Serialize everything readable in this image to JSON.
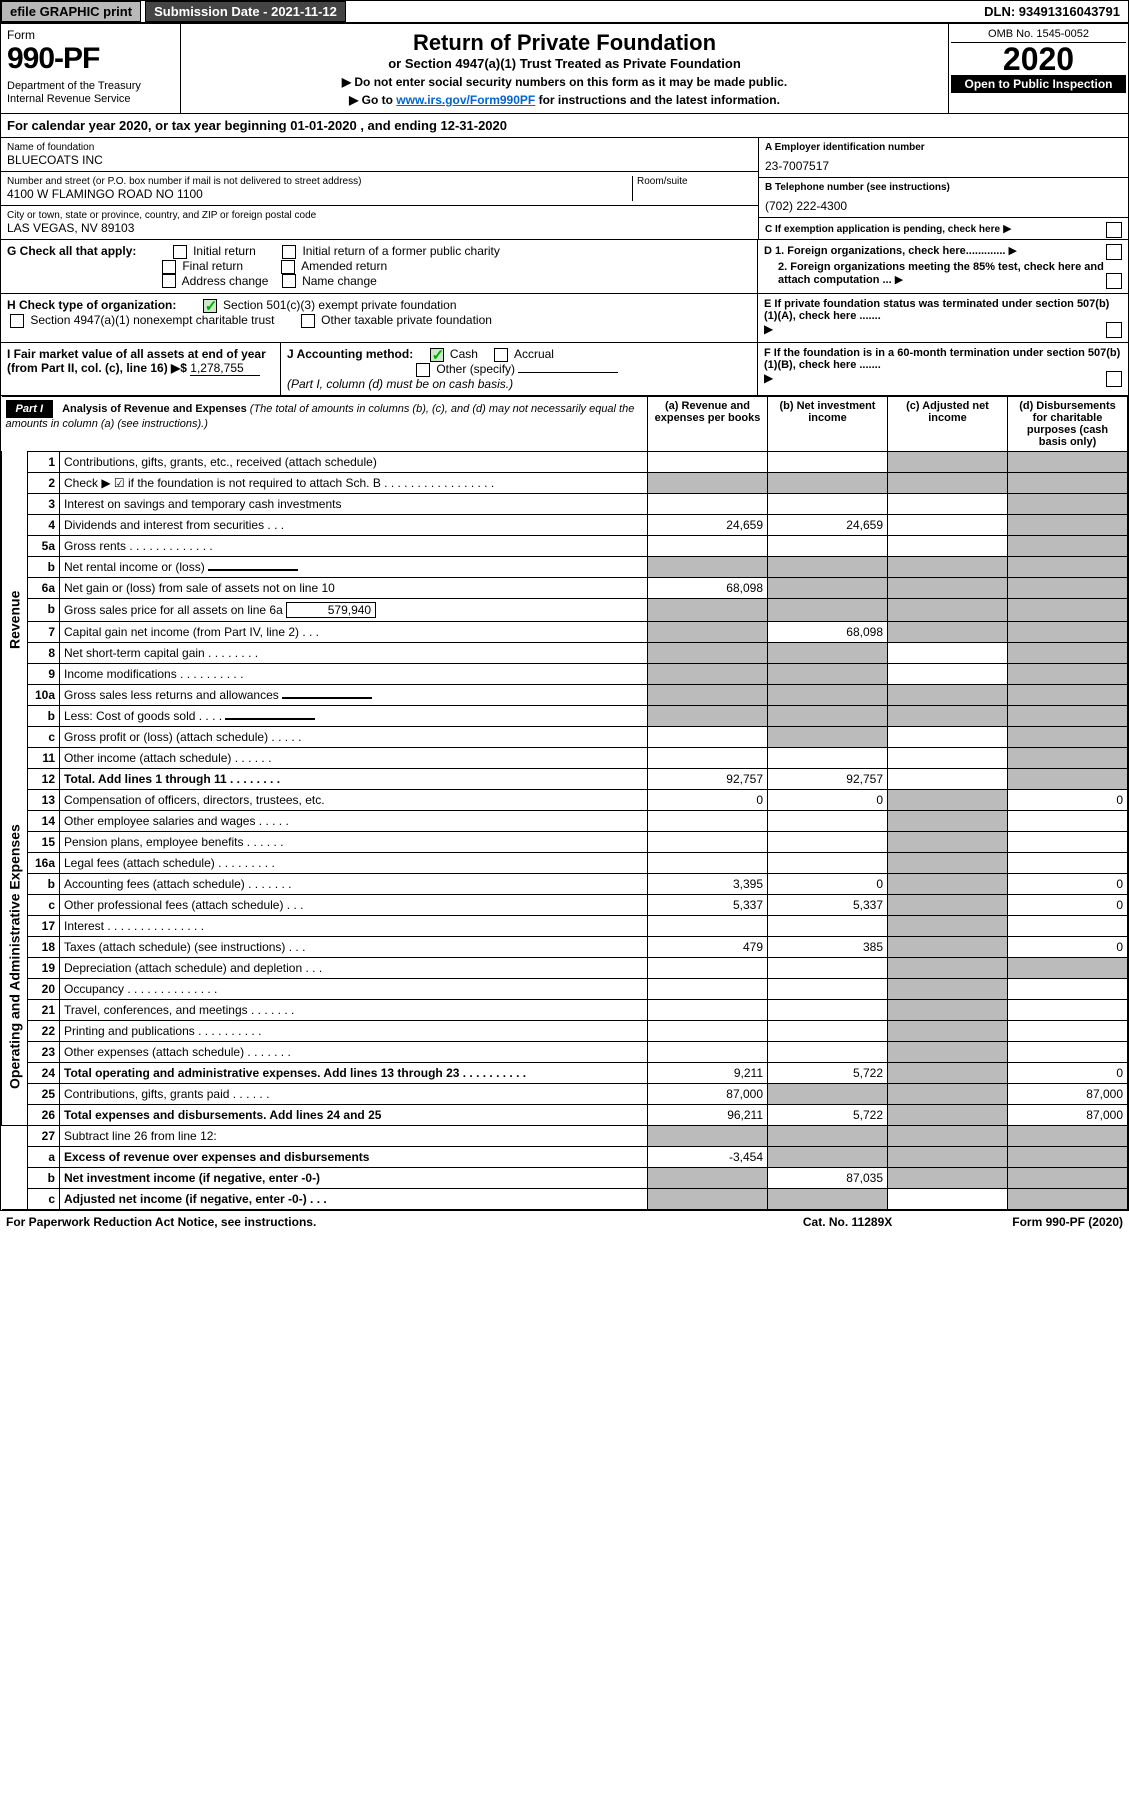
{
  "topbar": {
    "efile": "efile GRAPHIC print",
    "submission": "Submission Date - 2021-11-12",
    "dln": "DLN: 93491316043791"
  },
  "header": {
    "form_label": "Form",
    "form_num": "990-PF",
    "dept": "Department of the Treasury\nInternal Revenue Service",
    "title": "Return of Private Foundation",
    "subtitle": "or Section 4947(a)(1) Trust Treated as Private Foundation",
    "inst1": "▶ Do not enter social security numbers on this form as it may be made public.",
    "inst2": "▶ Go to ",
    "inst2_link": "www.irs.gov/Form990PF",
    "inst2_end": " for instructions and the latest information.",
    "omb": "OMB No. 1545-0052",
    "year": "2020",
    "open": "Open to Public Inspection"
  },
  "cal": "For calendar year 2020, or tax year beginning 01-01-2020                          , and ending 12-31-2020",
  "info": {
    "name_lbl": "Name of foundation",
    "name": "BLUECOATS INC",
    "addr_lbl": "Number and street (or P.O. box number if mail is not delivered to street address)",
    "addr": "4100 W FLAMINGO ROAD NO 1100",
    "room": "Room/suite",
    "city_lbl": "City or town, state or province, country, and ZIP or foreign postal code",
    "city": "LAS VEGAS, NV  89103",
    "ein_lbl": "A Employer identification number",
    "ein": "23-7007517",
    "tel_lbl": "B Telephone number (see instructions)",
    "tel": "(702) 222-4300",
    "c": "C If exemption application is pending, check here"
  },
  "g": {
    "label": "G Check all that apply:",
    "o1": "Initial return",
    "o2": "Final return",
    "o3": "Address change",
    "o4": "Initial return of a former public charity",
    "o5": "Amended return",
    "o6": "Name change"
  },
  "h": {
    "label": "H Check type of organization:",
    "o1": "Section 501(c)(3) exempt private foundation",
    "o2": "Section 4947(a)(1) nonexempt charitable trust",
    "o3": "Other taxable private foundation"
  },
  "i": {
    "label": "I Fair market value of all assets at end of year (from Part II, col. (c), line 16) ▶$ ",
    "val": "1,278,755"
  },
  "j": {
    "label": "J Accounting method:",
    "o1": "Cash",
    "o2": "Accrual",
    "o3": "Other (specify)",
    "note": "(Part I, column (d) must be on cash basis.)"
  },
  "d": {
    "d1": "D 1. Foreign organizations, check here.............",
    "d2": "2. Foreign organizations meeting the 85% test, check here and attach computation ..."
  },
  "e": "E  If private foundation status was terminated under section 507(b)(1)(A), check here .......",
  "f": "F  If the foundation is in a 60-month termination under section 507(b)(1)(B), check here .......",
  "part1": {
    "hdr": "Part I",
    "title": "Analysis of Revenue and Expenses",
    "note": "(The total of amounts in columns (b), (c), and (d) may not necessarily equal the amounts in column (a) (see instructions).)",
    "cols": {
      "a": "(a)   Revenue and expenses per books",
      "b": "(b)   Net investment income",
      "c": "(c)   Adjusted net income",
      "d": "(d)   Disbursements for charitable purposes (cash basis only)"
    }
  },
  "sections": {
    "rev": "Revenue",
    "exp": "Operating and Administrative Expenses"
  },
  "rows": [
    {
      "n": "1",
      "d": "Contributions, gifts, grants, etc., received (attach schedule)",
      "a": "",
      "b": "",
      "c": "g",
      "dcol": "g"
    },
    {
      "n": "2",
      "d": "Check ▶ ☑ if the foundation is not required to attach Sch. B       .  .  .  .  .  .  .  .  .  .  .  .  .  .  .  .  .",
      "a": "g",
      "b": "g",
      "c": "g",
      "dcol": "g"
    },
    {
      "n": "3",
      "d": "Interest on savings and temporary cash investments",
      "a": "",
      "b": "",
      "c": "",
      "dcol": "g"
    },
    {
      "n": "4",
      "d": "Dividends and interest from securities     .    .    .",
      "a": "24,659",
      "b": "24,659",
      "c": "",
      "dcol": "g"
    },
    {
      "n": "5a",
      "d": "Gross rents         .  .  .  .  .  .  .  .  .  .  .  .  .",
      "a": "",
      "b": "",
      "c": "",
      "dcol": "g"
    },
    {
      "n": "b",
      "d": "Net rental income or (loss)   ",
      "a": "g",
      "b": "g",
      "c": "g",
      "dcol": "g",
      "inline": true
    },
    {
      "n": "6a",
      "d": "Net gain or (loss) from sale of assets not on line 10",
      "a": "68,098",
      "b": "g",
      "c": "g",
      "dcol": "g"
    },
    {
      "n": "b",
      "d": "Gross sales price for all assets on line 6a",
      "a": "g",
      "b": "g",
      "c": "g",
      "dcol": "g",
      "inline": true,
      "ival": "579,940"
    },
    {
      "n": "7",
      "d": "Capital gain net income (from Part IV, line 2)    .    .    .",
      "a": "g",
      "b": "68,098",
      "c": "g",
      "dcol": "g"
    },
    {
      "n": "8",
      "d": "Net short-term capital gain  .   .   .   .   .   .   .   .",
      "a": "g",
      "b": "g",
      "c": "",
      "dcol": "g"
    },
    {
      "n": "9",
      "d": "Income modifications  .   .   .   .   .   .   .   .   .  .",
      "a": "g",
      "b": "g",
      "c": "",
      "dcol": "g"
    },
    {
      "n": "10a",
      "d": "Gross sales less returns and allowances",
      "a": "g",
      "b": "g",
      "c": "g",
      "dcol": "g",
      "inline": true
    },
    {
      "n": "b",
      "d": "Less: Cost of goods sold     .    .    .    .",
      "a": "g",
      "b": "g",
      "c": "g",
      "dcol": "g",
      "inline": true
    },
    {
      "n": "c",
      "d": "Gross profit or (loss) (attach schedule)       .    .    .    .    .",
      "a": "",
      "b": "g",
      "c": "",
      "dcol": "g"
    },
    {
      "n": "11",
      "d": "Other income (attach schedule)     .    .    .    .    .    .",
      "a": "",
      "b": "",
      "c": "",
      "dcol": "g"
    },
    {
      "n": "12",
      "d": "Total. Add lines 1 through 11   .    .    .    .    .    .    .    .",
      "a": "92,757",
      "b": "92,757",
      "c": "",
      "dcol": "g",
      "bold": true
    }
  ],
  "rows2": [
    {
      "n": "13",
      "d": "Compensation of officers, directors, trustees, etc.",
      "a": "0",
      "b": "0",
      "c": "g",
      "dcol": "0"
    },
    {
      "n": "14",
      "d": "Other employee salaries and wages    .    .    .    .    .",
      "a": "",
      "b": "",
      "c": "g",
      "dcol": ""
    },
    {
      "n": "15",
      "d": "Pension plans, employee benefits  .   .   .   .   .    .",
      "a": "",
      "b": "",
      "c": "g",
      "dcol": ""
    },
    {
      "n": "16a",
      "d": "Legal fees (attach schedule) .   .   .   .   .   .   .   .   .",
      "a": "",
      "b": "",
      "c": "g",
      "dcol": ""
    },
    {
      "n": "b",
      "d": "Accounting fees (attach schedule) .   .   .   .   .   .   .",
      "a": "3,395",
      "b": "0",
      "c": "g",
      "dcol": "0"
    },
    {
      "n": "c",
      "d": "Other professional fees (attach schedule)     .    .    .",
      "a": "5,337",
      "b": "5,337",
      "c": "g",
      "dcol": "0"
    },
    {
      "n": "17",
      "d": "Interest  .   .   .   .   .   .   .   .   .   .   .   .   .   .   .",
      "a": "",
      "b": "",
      "c": "g",
      "dcol": ""
    },
    {
      "n": "18",
      "d": "Taxes (attach schedule) (see instructions)       .    .    .",
      "a": "479",
      "b": "385",
      "c": "g",
      "dcol": "0"
    },
    {
      "n": "19",
      "d": "Depreciation (attach schedule) and depletion    .    .    .",
      "a": "",
      "b": "",
      "c": "g",
      "dcol": "g"
    },
    {
      "n": "20",
      "d": "Occupancy .   .   .   .   .   .   .   .   .   .   .   .   .   .",
      "a": "",
      "b": "",
      "c": "g",
      "dcol": ""
    },
    {
      "n": "21",
      "d": "Travel, conferences, and meetings  .   .   .   .   .   .   .",
      "a": "",
      "b": "",
      "c": "g",
      "dcol": ""
    },
    {
      "n": "22",
      "d": "Printing and publications .   .   .   .   .   .   .   .   .   .",
      "a": "",
      "b": "",
      "c": "g",
      "dcol": ""
    },
    {
      "n": "23",
      "d": "Other expenses (attach schedule)  .   .   .   .   .   .   .",
      "a": "",
      "b": "",
      "c": "g",
      "dcol": ""
    },
    {
      "n": "24",
      "d": "Total operating and administrative expenses. Add lines 13 through 23   .   .   .   .   .   .   .   .   .   .",
      "a": "9,211",
      "b": "5,722",
      "c": "g",
      "dcol": "0",
      "bold": true
    },
    {
      "n": "25",
      "d": "Contributions, gifts, grants paid     .    .    .    .    .    .",
      "a": "87,000",
      "b": "g",
      "c": "g",
      "dcol": "87,000"
    },
    {
      "n": "26",
      "d": "Total expenses and disbursements. Add lines 24 and 25",
      "a": "96,211",
      "b": "5,722",
      "c": "g",
      "dcol": "87,000",
      "bold": true
    }
  ],
  "rows3": [
    {
      "n": "27",
      "d": "Subtract line 26 from line 12:",
      "a": "g",
      "b": "g",
      "c": "g",
      "dcol": "g"
    },
    {
      "n": "a",
      "d": "Excess of revenue over expenses and disbursements",
      "a": "-3,454",
      "b": "g",
      "c": "g",
      "dcol": "g",
      "bold": true
    },
    {
      "n": "b",
      "d": "Net investment income (if negative, enter -0-)",
      "a": "g",
      "b": "87,035",
      "c": "g",
      "dcol": "g",
      "bold": true
    },
    {
      "n": "c",
      "d": "Adjusted net income (if negative, enter -0-)   .   .   .",
      "a": "g",
      "b": "g",
      "c": "",
      "dcol": "g",
      "bold": true
    }
  ],
  "footer": {
    "l": "For Paperwork Reduction Act Notice, see instructions.",
    "m": "Cat. No. 11289X",
    "r": "Form 990-PF (2020)"
  }
}
